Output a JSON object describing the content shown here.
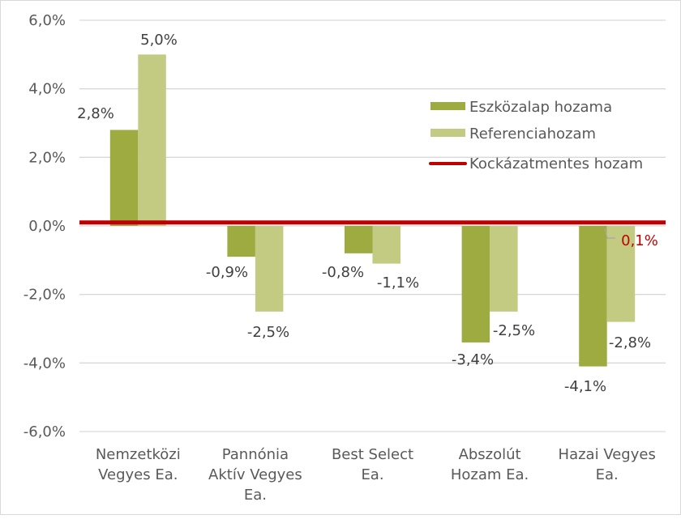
{
  "chart_data": {
    "type": "bar",
    "title": "",
    "xlabel": "",
    "ylabel": "",
    "ylim": [
      -6,
      6
    ],
    "yticks": [
      "6,0%",
      "4,0%",
      "2,0%",
      "0,0%",
      "-2,0%",
      "-4,0%",
      "-6,0%"
    ],
    "ytick_values": [
      6,
      4,
      2,
      0,
      -2,
      -4,
      -6
    ],
    "grid": true,
    "legend_position": "right-inside",
    "categories": [
      [
        "Nemzetközi",
        "Vegyes Ea."
      ],
      [
        "Pannónia",
        "Aktív Vegyes",
        "Ea."
      ],
      [
        "Best Select",
        "Ea."
      ],
      [
        "Abszolút",
        "Hozam Ea."
      ],
      [
        "Hazai Vegyes",
        "Ea."
      ]
    ],
    "series": [
      {
        "name": "Eszközalap hozama",
        "color": "#9eab41",
        "values": [
          2.8,
          -0.9,
          -0.8,
          -3.4,
          -4.1
        ],
        "labels": [
          "2,8%",
          "-0,9%",
          "-0,8%",
          "-3,4%",
          "-4,1%"
        ]
      },
      {
        "name": "Referenciahozam",
        "color": "#c3ca82",
        "values": [
          5.0,
          -2.5,
          -1.1,
          -2.5,
          -2.8
        ],
        "labels": [
          "5,0%",
          "-2,5%",
          "-1,1%",
          "-2,5%",
          "-2,8%"
        ]
      },
      {
        "name": "Kockázatmentes hozam",
        "type": "line",
        "color": "#c00000",
        "value": 0.1,
        "label": "0,1%"
      }
    ]
  }
}
